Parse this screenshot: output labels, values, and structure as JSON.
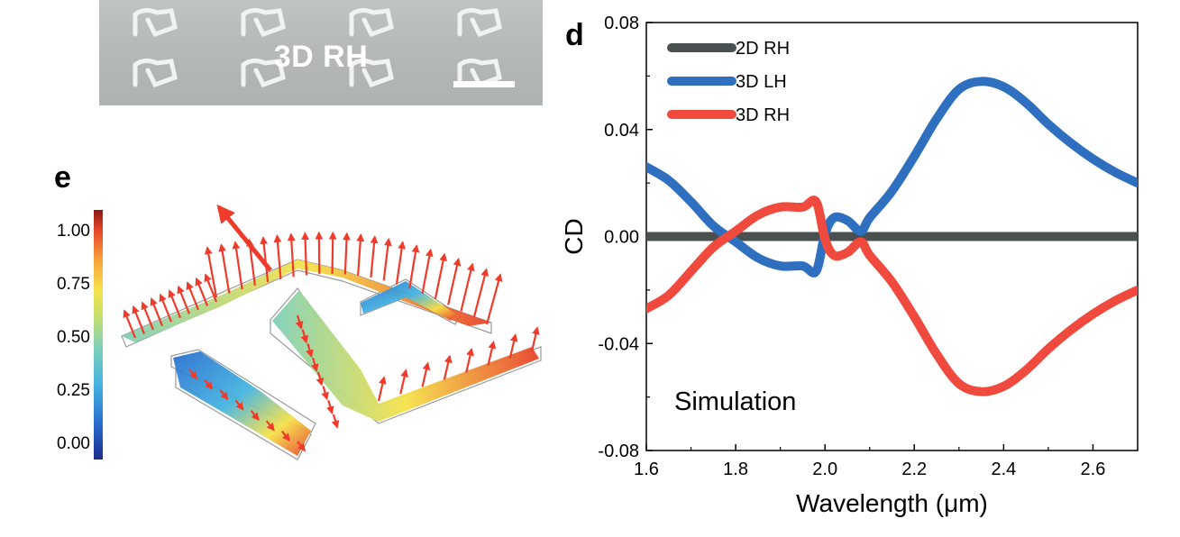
{
  "panels": {
    "d": "d",
    "e": "e"
  },
  "sem_image": {
    "label": "3D RH",
    "background": "#b7bbba"
  },
  "colorbar": {
    "ticks": [
      "1.00",
      "0.75",
      "0.50",
      "0.25",
      "0.00"
    ],
    "colormap": [
      "#1d2d8c",
      "#2a6fd0",
      "#45b4e0",
      "#7fd0b8",
      "#c8e06a",
      "#f6e24a",
      "#f7a23a",
      "#e8432a",
      "#8c1a16"
    ]
  },
  "chart_data": {
    "type": "line",
    "xlabel": "Wavelength (μm)",
    "ylabel": "CD",
    "xlim": [
      1.6,
      2.7
    ],
    "ylim": [
      -0.08,
      0.08
    ],
    "xticks": [
      "1.6",
      "1.8",
      "2.0",
      "2.2",
      "2.4",
      "2.6"
    ],
    "yticks": [
      "0.08",
      "0.04",
      "0.00",
      "-0.04",
      "-0.08"
    ],
    "annotation": "Simulation",
    "legend_position": "top-left",
    "grid": false,
    "series": [
      {
        "name": "2D RH",
        "color": "#4a4f4f",
        "x": [
          1.6,
          2.7
        ],
        "y": [
          0.0,
          0.0
        ]
      },
      {
        "name": "3D LH",
        "color": "#2f6fbf",
        "x": [
          1.6,
          1.65,
          1.7,
          1.75,
          1.8,
          1.85,
          1.9,
          1.95,
          1.98,
          2.0,
          2.02,
          2.05,
          2.08,
          2.1,
          2.15,
          2.2,
          2.25,
          2.3,
          2.35,
          2.4,
          2.45,
          2.5,
          2.55,
          2.6,
          2.65,
          2.7
        ],
        "y": [
          0.026,
          0.021,
          0.013,
          0.004,
          -0.002,
          -0.008,
          -0.011,
          -0.011,
          -0.013,
          0.001,
          0.007,
          0.006,
          0.002,
          0.007,
          0.017,
          0.03,
          0.044,
          0.055,
          0.058,
          0.056,
          0.05,
          0.042,
          0.035,
          0.029,
          0.024,
          0.02
        ]
      },
      {
        "name": "3D RH",
        "color": "#f04a3e",
        "x": [
          1.6,
          1.65,
          1.7,
          1.75,
          1.8,
          1.85,
          1.9,
          1.95,
          1.98,
          2.0,
          2.02,
          2.05,
          2.08,
          2.1,
          2.15,
          2.2,
          2.25,
          2.3,
          2.35,
          2.4,
          2.45,
          2.5,
          2.55,
          2.6,
          2.65,
          2.7
        ],
        "y": [
          -0.027,
          -0.022,
          -0.013,
          -0.004,
          0.002,
          0.008,
          0.011,
          0.011,
          0.013,
          -0.001,
          -0.007,
          -0.006,
          -0.002,
          -0.007,
          -0.017,
          -0.03,
          -0.044,
          -0.055,
          -0.058,
          -0.056,
          -0.05,
          -0.042,
          -0.035,
          -0.029,
          -0.024,
          -0.02
        ]
      }
    ]
  }
}
